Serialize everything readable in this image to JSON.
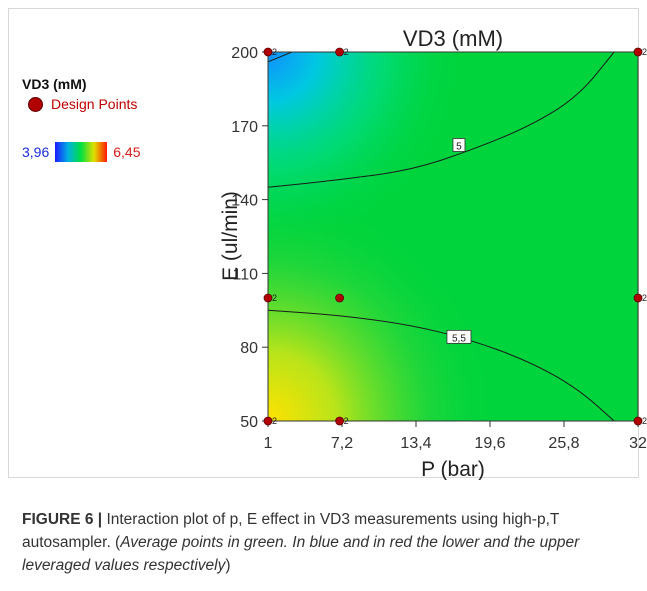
{
  "chart_data": {
    "type": "contour",
    "title": "VD3 (mM)",
    "xlabel": "P (bar)",
    "ylabel": "E (ul/min)",
    "xlim": [
      1,
      32
    ],
    "ylim": [
      50,
      200
    ],
    "x_ticks": [
      "1",
      "7,2",
      "13,4",
      "19,6",
      "25,8",
      "32"
    ],
    "y_ticks": [
      "50",
      "80",
      "110",
      "140",
      "170",
      "200"
    ],
    "x_tick_values": [
      1,
      7.2,
      13.4,
      19.6,
      25.8,
      32
    ],
    "y_tick_values": [
      50,
      80,
      110,
      140,
      170,
      200
    ],
    "contours": [
      {
        "label": "5",
        "points": [
          [
            1,
            145
          ],
          [
            7,
            148
          ],
          [
            13,
            152
          ],
          [
            18,
            160
          ],
          [
            23,
            170
          ],
          [
            27,
            182
          ],
          [
            30,
            200
          ]
        ],
        "label_at": [
          17,
          162
        ]
      },
      {
        "label": "5,5",
        "points": [
          [
            1,
            95
          ],
          [
            7,
            93
          ],
          [
            13,
            89
          ],
          [
            18,
            83
          ],
          [
            23,
            74
          ],
          [
            27,
            63
          ],
          [
            30,
            50
          ]
        ],
        "label_at": [
          17,
          84
        ]
      },
      {
        "label": "",
        "points": [
          [
            1,
            196
          ],
          [
            3,
            200
          ]
        ]
      }
    ],
    "design_points": [
      {
        "x": 1,
        "y": 200,
        "reps": "2"
      },
      {
        "x": 7,
        "y": 200,
        "reps": "2"
      },
      {
        "x": 32,
        "y": 200,
        "reps": "2"
      },
      {
        "x": 1,
        "y": 100,
        "reps": "2"
      },
      {
        "x": 7,
        "y": 100,
        "reps": ""
      },
      {
        "x": 32,
        "y": 100,
        "reps": "2"
      },
      {
        "x": 1,
        "y": 50,
        "reps": "2"
      },
      {
        "x": 7,
        "y": 50,
        "reps": "2"
      },
      {
        "x": 32,
        "y": 50,
        "reps": "2"
      }
    ],
    "legend": {
      "title": "VD3 (mM)",
      "design_points_label": "Design Points",
      "range_min": "3,96",
      "range_max": "6,45"
    },
    "colors": {
      "low": "#1a1aff",
      "mid": "#00d43c",
      "high": "#ffe600",
      "design_point": "#b00000"
    }
  },
  "caption": {
    "label": "FIGURE 6 |",
    "text": " Interaction plot of p, E effect in VD3 measurements using high-p,T autosampler. (",
    "note": "Average points in green. In blue and in red the lower and the upper leveraged values respectively",
    "end": ")"
  }
}
